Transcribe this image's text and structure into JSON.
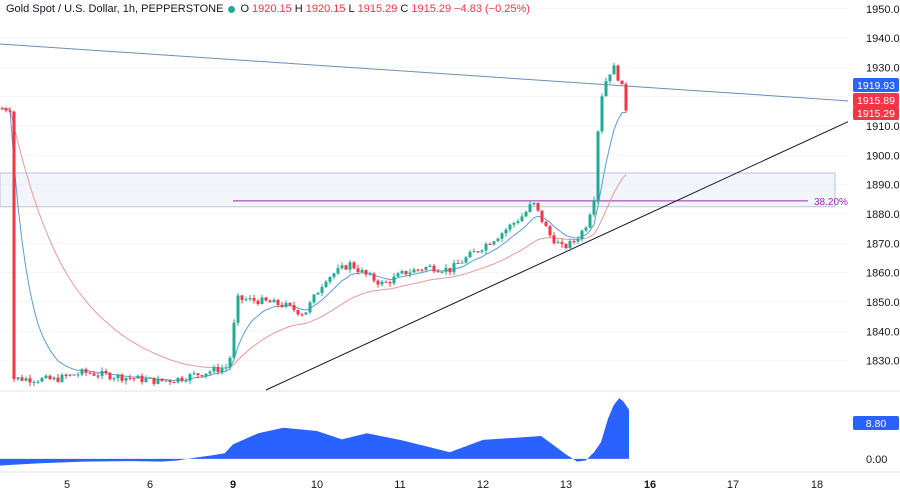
{
  "legend": {
    "symbol": "Gold Spot / U.S. Dollar, 1h, PEPPERSTONE",
    "o_label": "O",
    "o": "1920.15",
    "h_label": "H",
    "h": "1920.15",
    "l_label": "L",
    "l": "1915.29",
    "c_label": "C",
    "c": "1915.29",
    "change": "−4.83 (−0.25%)"
  },
  "colors": {
    "up": "#22ab94",
    "down": "#f23645",
    "fast_ma": "#5b9bd5",
    "slow_ma": "#e59a9a",
    "trendline_upper": "#6a8fb5",
    "trendline_lower": "#131722",
    "fib": "#9c27b0",
    "zone": "#e8eef8",
    "oscillator": "#2962ff"
  },
  "chart_data": [
    {
      "type": "candlestick",
      "title": "",
      "ylim": [
        1820,
        1953
      ],
      "y_ticks": [
        "1830.00",
        "1840.00",
        "1850.00",
        "1860.00",
        "1870.00",
        "1880.00",
        "1890.00",
        "1900.00",
        "1910.00",
        "1920.00",
        "1930.00",
        "1940.00",
        "1950.00"
      ],
      "x_ticks": [
        "5",
        "6",
        "9",
        "10",
        "11",
        "12",
        "13",
        "16",
        "17",
        "18"
      ],
      "x_ticks_bold": [
        "9",
        "16"
      ],
      "price_labels": [
        {
          "text": "1919.93",
          "value": 1919.93,
          "color": "#2962ff"
        },
        {
          "text": "1915.89",
          "value": 1915.89,
          "color": "#f23645"
        },
        {
          "text": "1915.29",
          "value": 1915.29,
          "color": "#f23645"
        }
      ],
      "fib_level": {
        "label": "38.20%",
        "value": 1884.5
      },
      "zone": {
        "low": 1882.5,
        "high": 1894
      },
      "trendlines": [
        {
          "name": "upper",
          "from": {
            "day": 4.15,
            "price": 1938
          },
          "to": {
            "day": 18.0,
            "price": 1918.5
          }
        },
        {
          "name": "lower",
          "from": {
            "day": 9.35,
            "price": 1820
          },
          "to": {
            "day": 18.3,
            "price": 1914
          }
        }
      ],
      "price_path": [
        [
          4.15,
          1824
        ],
        [
          4.8,
          1823.5
        ],
        [
          5.2,
          1826
        ],
        [
          5.8,
          1824
        ],
        [
          6.3,
          1823
        ],
        [
          6.8,
          1823.5
        ],
        [
          7.1,
          1824
        ],
        [
          8.85,
          1828
        ],
        [
          9.05,
          1851
        ],
        [
          9.3,
          1850.5
        ],
        [
          9.6,
          1849
        ],
        [
          9.85,
          1846
        ],
        [
          10.1,
          1858
        ],
        [
          10.4,
          1863
        ],
        [
          10.6,
          1859
        ],
        [
          10.8,
          1856
        ],
        [
          11.05,
          1860
        ],
        [
          11.35,
          1862
        ],
        [
          11.6,
          1861
        ],
        [
          11.85,
          1866
        ],
        [
          12.2,
          1873
        ],
        [
          12.5,
          1880
        ],
        [
          12.6,
          1884
        ],
        [
          12.8,
          1873
        ],
        [
          12.95,
          1868.5
        ],
        [
          13.2,
          1870
        ],
        [
          13.5,
          1873
        ],
        [
          13.75,
          1877
        ],
        [
          14.0,
          1886
        ],
        [
          14.2,
          1918
        ],
        [
          14.5,
          1928
        ],
        [
          14.75,
          1930
        ],
        [
          14.95,
          1924
        ],
        [
          15.15,
          1920
        ],
        [
          15.25,
          1916
        ]
      ]
    },
    {
      "type": "area",
      "title": "",
      "ylim": [
        -2,
        12
      ],
      "y_ticks": [
        "0.00"
      ],
      "current_value_label": "8.80",
      "x": [
        4.0,
        4.6,
        5.2,
        5.8,
        6.4,
        7.0,
        7.6,
        8.2,
        8.7,
        9.0,
        9.3,
        9.6,
        10.0,
        10.3,
        10.6,
        11.0,
        11.3,
        11.6,
        12.0,
        12.4,
        12.7,
        13.0,
        13.4,
        13.7,
        14.0,
        14.25,
        14.5,
        14.7,
        14.9,
        15.05,
        15.25
      ],
      "values": [
        -1.2,
        -0.8,
        -0.5,
        -0.4,
        -0.5,
        -0.3,
        0.2,
        0.6,
        1.0,
        2.6,
        4.6,
        5.6,
        5.0,
        3.5,
        4.6,
        3.4,
        2.3,
        1.2,
        3.4,
        3.8,
        4.1,
        0.8,
        -0.5,
        -0.3,
        1.2,
        3.0,
        7.2,
        9.6,
        10.9,
        10.3,
        8.8
      ]
    }
  ]
}
